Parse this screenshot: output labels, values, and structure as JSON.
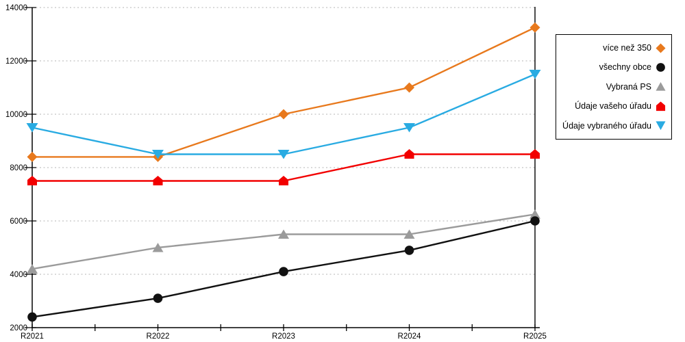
{
  "chart_data": {
    "type": "line",
    "title": "",
    "xlabel": "",
    "ylabel": "",
    "categories": [
      "R2021",
      "R2022",
      "R2023",
      "R2024",
      "R2025"
    ],
    "series": [
      {
        "name": "více než 350",
        "color": "#E8791D",
        "marker": "diamond",
        "values": [
          8400,
          8400,
          10000,
          11000,
          13250
        ]
      },
      {
        "name": "všechny obce",
        "color": "#111111",
        "marker": "circle",
        "values": [
          2400,
          3100,
          4100,
          4900,
          6000
        ]
      },
      {
        "name": "Vybraná PS",
        "color": "#9B9B9B",
        "marker": "triangle-up",
        "values": [
          4200,
          5000,
          5500,
          5500,
          6250
        ]
      },
      {
        "name": "Údaje vašeho úřadu",
        "color": "#F20000",
        "marker": "pentagon",
        "values": [
          7500,
          7500,
          7500,
          8500,
          8500
        ]
      },
      {
        "name": "Údaje vybraného úřadu",
        "color": "#29ABE2",
        "marker": "triangle-down",
        "values": [
          9500,
          8500,
          8500,
          9500,
          11500
        ]
      }
    ],
    "ylim": [
      2000,
      14000
    ],
    "yticks": [
      2000,
      4000,
      6000,
      8000,
      10000,
      12000,
      14000
    ],
    "grid": "horizontal-dotted",
    "gridline_color": "#B3B3B3",
    "axis_color": "#000000",
    "legend_position": "right"
  }
}
